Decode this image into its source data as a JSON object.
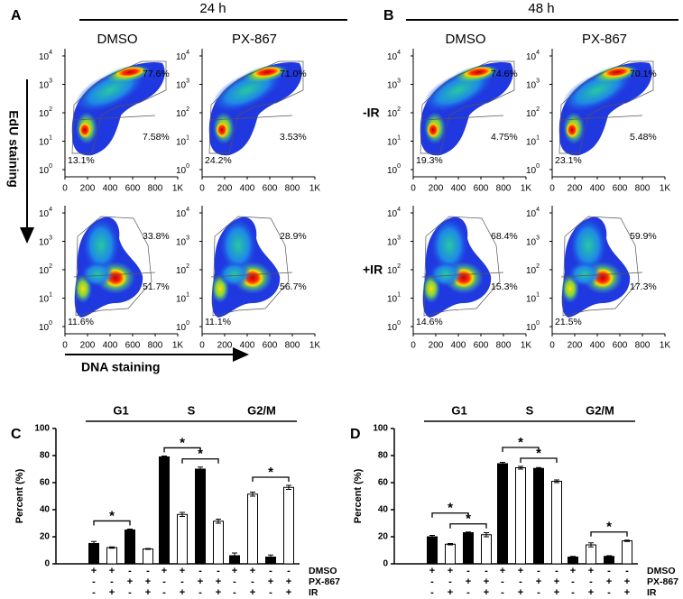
{
  "flow": {
    "y_title": "EdU staining",
    "x_title": "DNA staining",
    "xticks": [
      "0",
      "200",
      "400",
      "600",
      "800",
      "1K"
    ],
    "ytick_base": "10",
    "ytick_exponents": [
      "0",
      "1",
      "2",
      "3",
      "4"
    ],
    "row_labels": [
      "-IR",
      "+IR"
    ],
    "panels": [
      {
        "letter": "A",
        "time": "24 h",
        "columns": [
          {
            "name": "DMSO",
            "plots": [
              {
                "gate_top": "77.6%",
                "gate_right": "7.58%",
                "gate_bottom": "13.1%"
              },
              {
                "gate_top": "33.8%",
                "gate_right": "51.7%",
                "gate_bottom": "11.6%"
              }
            ]
          },
          {
            "name": "PX-867",
            "plots": [
              {
                "gate_top": "71.0%",
                "gate_right": "3.53%",
                "gate_bottom": "24.2%"
              },
              {
                "gate_top": "28.9%",
                "gate_right": "56.7%",
                "gate_bottom": "11.1%"
              }
            ]
          }
        ]
      },
      {
        "letter": "B",
        "time": "48 h",
        "columns": [
          {
            "name": "DMSO",
            "plots": [
              {
                "gate_top": "74.6%",
                "gate_right": "4.75%",
                "gate_bottom": "19.3%"
              },
              {
                "gate_top": "68.4%",
                "gate_right": "15.3%",
                "gate_bottom": "14.6%"
              }
            ]
          },
          {
            "name": "PX-867",
            "plots": [
              {
                "gate_top": "70.1%",
                "gate_right": "5.48%",
                "gate_bottom": "23.1%"
              },
              {
                "gate_top": "59.9%",
                "gate_right": "17.3%",
                "gate_bottom": "21.5%"
              }
            ]
          }
        ]
      }
    ]
  },
  "chart_data": [
    {
      "type": "bar",
      "letter": "C",
      "ylabel": "Percent (%)",
      "groups": [
        "G1",
        "S",
        "G2/M"
      ],
      "values": [
        15,
        12,
        25,
        11,
        79,
        36.5,
        70,
        31.5,
        6,
        51.5,
        5,
        56.5
      ],
      "errors": [
        1.5,
        0.5,
        0.7,
        0.3,
        0.7,
        1.5,
        1.5,
        1.5,
        2,
        1.5,
        1.5,
        1.5
      ],
      "colors": [
        "#000000",
        "#ffffff",
        "#000000",
        "#ffffff",
        "#000000",
        "#ffffff",
        "#000000",
        "#ffffff",
        "#000000",
        "#ffffff",
        "#000000",
        "#ffffff"
      ],
      "ylim": [
        0,
        100
      ],
      "yticks": [
        0,
        20,
        40,
        60,
        80,
        100
      ],
      "brackets": [
        {
          "from": 0,
          "to": 2,
          "label": "*"
        },
        {
          "from": 4,
          "to": 6,
          "label": "*"
        },
        {
          "from": 5,
          "to": 7,
          "label": "*"
        },
        {
          "from": 9,
          "to": 11,
          "label": "*"
        }
      ],
      "conditions": [
        {
          "name": "DMSO",
          "signs": [
            "+",
            "+",
            "-",
            "-",
            "+",
            "+",
            "-",
            "-",
            "+",
            "+",
            "-",
            "-"
          ]
        },
        {
          "name": "PX-867",
          "signs": [
            "-",
            "-",
            "+",
            "+",
            "-",
            "-",
            "+",
            "+",
            "-",
            "-",
            "+",
            "+"
          ]
        },
        {
          "name": "IR",
          "signs": [
            "-",
            "+",
            "-",
            "+",
            "-",
            "+",
            "-",
            "+",
            "-",
            "+",
            "-",
            "+"
          ]
        }
      ]
    },
    {
      "type": "bar",
      "letter": "D",
      "ylabel": "Percent (%)",
      "groups": [
        "G1",
        "S",
        "G2/M"
      ],
      "values": [
        20,
        14.5,
        23,
        21.5,
        74,
        71,
        70.5,
        61,
        5,
        14,
        5.5,
        17
      ],
      "errors": [
        1,
        0.5,
        0.5,
        1.5,
        1,
        1,
        0.7,
        1,
        0.5,
        1.5,
        0.5,
        0.5
      ],
      "colors": [
        "#000000",
        "#ffffff",
        "#000000",
        "#ffffff",
        "#000000",
        "#ffffff",
        "#000000",
        "#ffffff",
        "#000000",
        "#ffffff",
        "#000000",
        "#ffffff"
      ],
      "ylim": [
        0,
        100
      ],
      "yticks": [
        0,
        20,
        40,
        60,
        80,
        100
      ],
      "brackets": [
        {
          "from": 0,
          "to": 2,
          "label": "*"
        },
        {
          "from": 1,
          "to": 3,
          "label": "*"
        },
        {
          "from": 4,
          "to": 6,
          "label": "*"
        },
        {
          "from": 5,
          "to": 7,
          "label": "*"
        },
        {
          "from": 9,
          "to": 11,
          "label": "*"
        }
      ],
      "conditions": [
        {
          "name": "DMSO",
          "signs": [
            "+",
            "+",
            "-",
            "-",
            "+",
            "+",
            "-",
            "-",
            "+",
            "+",
            "-",
            "-"
          ]
        },
        {
          "name": "PX-867",
          "signs": [
            "-",
            "-",
            "+",
            "+",
            "-",
            "-",
            "+",
            "+",
            "-",
            "-",
            "+",
            "+"
          ]
        },
        {
          "name": "IR",
          "signs": [
            "-",
            "+",
            "-",
            "+",
            "-",
            "+",
            "-",
            "+",
            "-",
            "+",
            "-",
            "+"
          ]
        }
      ]
    }
  ]
}
